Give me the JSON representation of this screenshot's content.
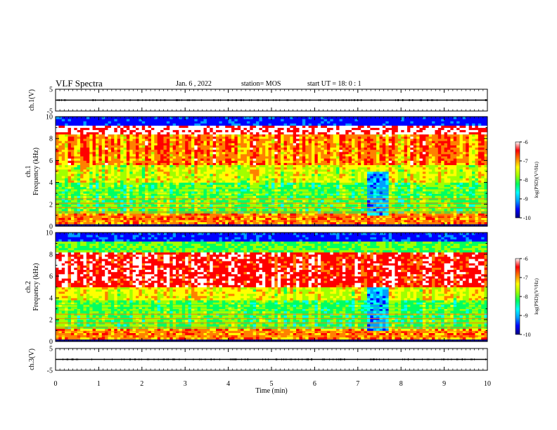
{
  "header": {
    "title": "VLF Spectra",
    "date": "Jan. 6 , 2022",
    "station": "station= MOS",
    "start_ut": "start UT = 18: 0 : 1"
  },
  "chart_data": [
    {
      "type": "line",
      "panel": "ch1-waveform",
      "ylabel": "ch.1(V)",
      "yticks": [
        "5",
        "-5"
      ],
      "ylim": [
        -5,
        5
      ],
      "x": [
        0,
        10
      ],
      "values": [
        0,
        0
      ]
    },
    {
      "type": "heatmap",
      "panel": "ch1-spectrogram",
      "ylabel": "ch.1\nFrequency (kHz)",
      "xlim": [
        0,
        10
      ],
      "ylim": [
        0,
        10
      ],
      "yticks": [
        "0",
        "2",
        "4",
        "6",
        "8",
        "10"
      ],
      "colorbar": {
        "label": "log(PSD)(V²/Hz)",
        "range": [
          -10,
          -6
        ],
        "ticks": [
          "-6",
          "-7",
          "-8",
          "-9",
          "-10"
        ],
        "colors": [
          "#000080",
          "#0000ff",
          "#00a0ff",
          "#00ffff",
          "#00ff60",
          "#a0ff00",
          "#ffff00",
          "#ff8000",
          "#ff0000",
          "#ffffff"
        ]
      }
    },
    {
      "type": "heatmap",
      "panel": "ch2-spectrogram",
      "ylabel": "ch.2\nFrequency (kHz)",
      "xlim": [
        0,
        10
      ],
      "ylim": [
        0,
        10
      ],
      "yticks": [
        "0",
        "2",
        "4",
        "6",
        "8",
        "10"
      ],
      "colorbar": {
        "label": "log(PSD)(V²/Hz)",
        "range": [
          -10,
          -6
        ],
        "ticks": [
          "-6",
          "-7",
          "-8",
          "-9",
          "-10"
        ],
        "colors": [
          "#000080",
          "#0000ff",
          "#00a0ff",
          "#00ffff",
          "#00ff60",
          "#a0ff00",
          "#ffff00",
          "#ff8000",
          "#ff0000",
          "#ffffff"
        ]
      }
    },
    {
      "type": "line",
      "panel": "ch3-waveform",
      "ylabel": "ch.3(V)",
      "yticks": [
        "5",
        "-5"
      ],
      "ylim": [
        -5,
        5
      ],
      "x": [
        0,
        10
      ],
      "values": [
        0,
        0
      ]
    }
  ],
  "xaxis": {
    "label": "Time (min)",
    "ticks": [
      "0",
      "1",
      "2",
      "3",
      "4",
      "5",
      "6",
      "7",
      "8",
      "9",
      "10"
    ]
  }
}
